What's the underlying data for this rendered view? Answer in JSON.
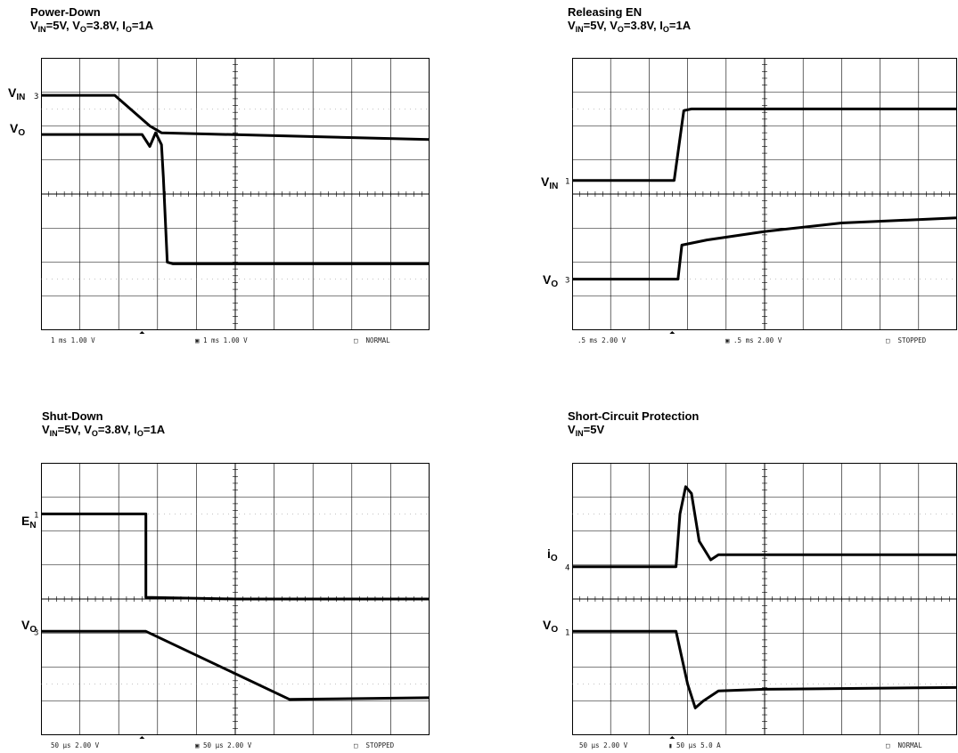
{
  "chart_data": [
    {
      "type": "line",
      "title": "Power-Down",
      "subtitle": "V_IN=5V, V_O=3.8V, I_O=1A",
      "signals": [
        "V_IN",
        "V_O"
      ],
      "trace_y_units": "divisions from top (0-8)",
      "time_units": "divisions (0-10)",
      "channel_markers": [
        "3"
      ],
      "series": [
        {
          "name": "V_IN",
          "points": [
            [
              0,
              1.1
            ],
            [
              1.9,
              1.1
            ],
            [
              2.8,
              2.0
            ],
            [
              3.1,
              2.2
            ],
            [
              10,
              2.4
            ]
          ]
        },
        {
          "name": "V_O",
          "points": [
            [
              0,
              2.25
            ],
            [
              2.6,
              2.25
            ],
            [
              2.8,
              2.6
            ],
            [
              2.95,
              2.2
            ],
            [
              3.1,
              2.55
            ],
            [
              3.15,
              3.5
            ],
            [
              3.25,
              6.0
            ],
            [
              3.4,
              6.05
            ],
            [
              10,
              6.05
            ]
          ]
        }
      ],
      "status": {
        "left": "1 ms 1.00 V",
        "channel": "3",
        "mid": "1 ms 1.00 V",
        "mode": "NORMAL"
      }
    },
    {
      "type": "line",
      "title": "Releasing EN",
      "subtitle": "V_IN=5V, V_O=3.8V, I_O=1A",
      "signals": [
        "V_IN",
        "V_O"
      ],
      "trace_y_units": "divisions from top (0-8)",
      "time_units": "divisions (0-10)",
      "channel_markers": [
        "1",
        "3"
      ],
      "series": [
        {
          "name": "V_IN",
          "points": [
            [
              0,
              3.6
            ],
            [
              2.65,
              3.6
            ],
            [
              2.9,
              1.55
            ],
            [
              3.1,
              1.5
            ],
            [
              10,
              1.5
            ]
          ]
        },
        {
          "name": "V_O",
          "points": [
            [
              0,
              6.5
            ],
            [
              2.75,
              6.5
            ],
            [
              2.85,
              5.5
            ],
            [
              3.5,
              5.35
            ],
            [
              5,
              5.1
            ],
            [
              7,
              4.85
            ],
            [
              10,
              4.7
            ]
          ]
        }
      ],
      "status": {
        "left": ".5 ms 2.00 V",
        "channel": "3",
        "mid": ".5 ms 2.00 V",
        "mode": "STOPPED"
      }
    },
    {
      "type": "line",
      "title": "Shut-Down",
      "subtitle": "V_IN=5V, V_O=3.8V, I_O=1A",
      "signals": [
        "E_N",
        "V_O"
      ],
      "trace_y_units": "divisions from top (0-8)",
      "time_units": "divisions (0-10)",
      "channel_markers": [
        "1",
        "3"
      ],
      "series": [
        {
          "name": "E_N",
          "points": [
            [
              0,
              1.5
            ],
            [
              2.7,
              1.5
            ],
            [
              2.7,
              3.95
            ],
            [
              5,
              4.0
            ],
            [
              10,
              4.0
            ]
          ]
        },
        {
          "name": "V_O",
          "points": [
            [
              0,
              4.95
            ],
            [
              2.7,
              4.95
            ],
            [
              6.4,
              6.95
            ],
            [
              10,
              6.9
            ]
          ]
        }
      ],
      "status": {
        "left": "50 µs 2.00 V",
        "channel": "3",
        "mid": "50 µs 2.00 V",
        "mode": "STOPPED"
      }
    },
    {
      "type": "line",
      "title": "Short-Circuit Protection",
      "subtitle": "V_IN=5V",
      "signals": [
        "i_O",
        "V_O"
      ],
      "trace_y_units": "divisions from top (0-8)",
      "time_units": "divisions (0-10)",
      "channel_markers": [
        "4",
        "1"
      ],
      "series": [
        {
          "name": "i_O",
          "points": [
            [
              0,
              3.05
            ],
            [
              2.7,
              3.05
            ],
            [
              2.8,
              1.5
            ],
            [
              2.95,
              0.7
            ],
            [
              3.1,
              0.9
            ],
            [
              3.3,
              2.3
            ],
            [
              3.6,
              2.85
            ],
            [
              3.8,
              2.7
            ],
            [
              10,
              2.7
            ]
          ]
        },
        {
          "name": "V_O",
          "points": [
            [
              0,
              4.95
            ],
            [
              2.7,
              4.95
            ],
            [
              3.0,
              6.5
            ],
            [
              3.2,
              7.2
            ],
            [
              3.4,
              7.0
            ],
            [
              3.8,
              6.7
            ],
            [
              5,
              6.65
            ],
            [
              10,
              6.6
            ]
          ]
        }
      ],
      "status": {
        "left": "50 µs 2.00 V",
        "channel": "4",
        "mid": "50 µs 5.0 A",
        "mode": "NORMAL"
      }
    }
  ]
}
